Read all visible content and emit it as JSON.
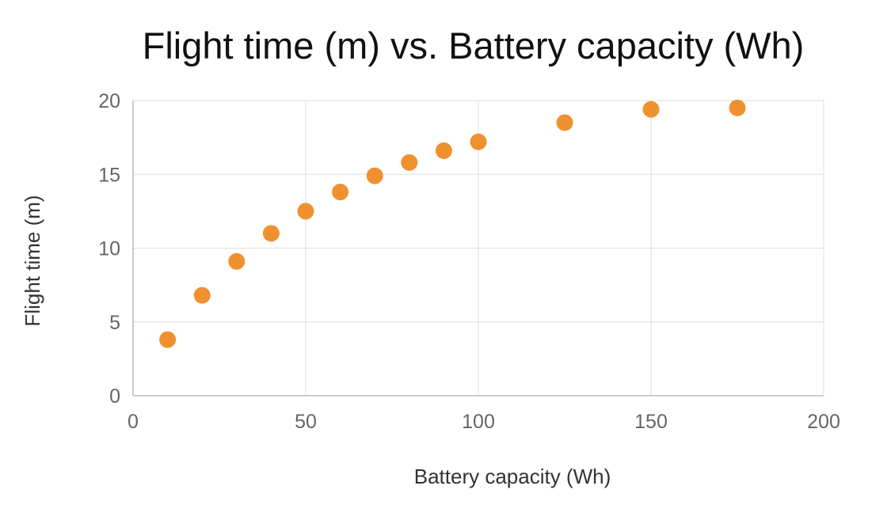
{
  "chart_data": {
    "type": "scatter",
    "title": "Flight time (m) vs. Battery capacity (Wh)",
    "xlabel": "Battery capacity (Wh)",
    "ylabel": "Flight time (m)",
    "xlim": [
      0,
      200
    ],
    "ylim": [
      0,
      20
    ],
    "xticks": [
      0,
      50,
      100,
      150,
      200
    ],
    "yticks": [
      0,
      5,
      10,
      15,
      20
    ],
    "grid": true,
    "legend": "none",
    "marker_color": "#F0912F",
    "points": [
      {
        "x": 10,
        "y": 3.8
      },
      {
        "x": 20,
        "y": 6.8
      },
      {
        "x": 30,
        "y": 9.1
      },
      {
        "x": 40,
        "y": 11.0
      },
      {
        "x": 50,
        "y": 12.5
      },
      {
        "x": 60,
        "y": 13.8
      },
      {
        "x": 70,
        "y": 14.9
      },
      {
        "x": 80,
        "y": 15.8
      },
      {
        "x": 90,
        "y": 16.6
      },
      {
        "x": 100,
        "y": 17.2
      },
      {
        "x": 125,
        "y": 18.5
      },
      {
        "x": 150,
        "y": 19.4
      },
      {
        "x": 175,
        "y": 19.5
      }
    ]
  }
}
